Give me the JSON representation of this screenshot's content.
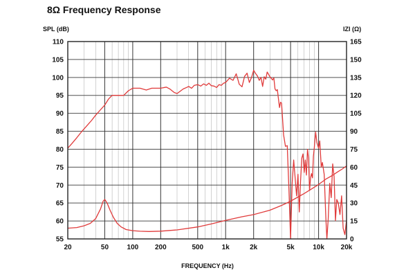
{
  "chart_data": {
    "type": "line",
    "title": "8Ω Frequency Response",
    "xlabel": "FREQUENCY (Hz)",
    "ylabel": "SPL (dB)",
    "y2label": "IZI (Ω)",
    "xscale": "log",
    "xlim": [
      20,
      20000
    ],
    "ylim": [
      55,
      110
    ],
    "y2lim": [
      0,
      165
    ],
    "grid": true,
    "x_tick_labels": [
      "20",
      "50",
      "100",
      "200",
      "500",
      "1k",
      "2k",
      "5k",
      "10k",
      "20k"
    ],
    "y_ticks": [
      55,
      60,
      65,
      70,
      75,
      80,
      85,
      90,
      95,
      100,
      105,
      110
    ],
    "y2_ticks": [
      0,
      15,
      30,
      45,
      60,
      75,
      90,
      105,
      120,
      135,
      150,
      165
    ],
    "colors": {
      "series": "#e03a3a",
      "grid": "#333333"
    },
    "series": [
      {
        "name": "SPL",
        "axis": "left",
        "points": [
          [
            20,
            80.3
          ],
          [
            22,
            81.5
          ],
          [
            25,
            83.2
          ],
          [
            28,
            84.8
          ],
          [
            32,
            86.5
          ],
          [
            36,
            88
          ],
          [
            40,
            89.5
          ],
          [
            45,
            91
          ],
          [
            50,
            92.3
          ],
          [
            55,
            94
          ],
          [
            60,
            95
          ],
          [
            70,
            95
          ],
          [
            80,
            95
          ],
          [
            90,
            96.3
          ],
          [
            100,
            97
          ],
          [
            120,
            97
          ],
          [
            140,
            96.5
          ],
          [
            160,
            97
          ],
          [
            180,
            97
          ],
          [
            200,
            97
          ],
          [
            230,
            97.3
          ],
          [
            250,
            96.8
          ],
          [
            280,
            95.8
          ],
          [
            300,
            95.5
          ],
          [
            330,
            96.3
          ],
          [
            350,
            96.8
          ],
          [
            380,
            97.2
          ],
          [
            400,
            97.5
          ],
          [
            430,
            97
          ],
          [
            460,
            97.8
          ],
          [
            500,
            98
          ],
          [
            540,
            97.6
          ],
          [
            580,
            98.2
          ],
          [
            620,
            97.8
          ],
          [
            660,
            98.4
          ],
          [
            700,
            97.7
          ],
          [
            750,
            97.6
          ],
          [
            800,
            97.2
          ],
          [
            850,
            98
          ],
          [
            900,
            97.8
          ],
          [
            950,
            98.4
          ],
          [
            1000,
            98.6
          ],
          [
            1100,
            99.8
          ],
          [
            1200,
            99.2
          ],
          [
            1300,
            101
          ],
          [
            1350,
            99.6
          ],
          [
            1400,
            98.1
          ],
          [
            1500,
            97.4
          ],
          [
            1600,
            100.3
          ],
          [
            1700,
            101.2
          ],
          [
            1800,
            98.6
          ],
          [
            1900,
            100
          ],
          [
            2000,
            102
          ],
          [
            2100,
            101.1
          ],
          [
            2200,
            100.4
          ],
          [
            2300,
            99.2
          ],
          [
            2400,
            100
          ],
          [
            2500,
            97.5
          ],
          [
            2600,
            100.2
          ],
          [
            2700,
            99.5
          ],
          [
            2800,
            101.5
          ],
          [
            3000,
            100.2
          ],
          [
            3200,
            99.3
          ],
          [
            3300,
            99.9
          ],
          [
            3400,
            96.8
          ],
          [
            3500,
            96.3
          ],
          [
            3600,
            96.6
          ],
          [
            3700,
            94
          ],
          [
            3800,
            91.6
          ],
          [
            3900,
            93.1
          ],
          [
            4000,
            92.8
          ],
          [
            4200,
            84
          ],
          [
            4400,
            80.8
          ],
          [
            4600,
            81
          ],
          [
            4800,
            69
          ],
          [
            5000,
            55
          ],
          [
            5200,
            70.5
          ],
          [
            5400,
            77
          ],
          [
            5600,
            72
          ],
          [
            5800,
            67
          ],
          [
            6000,
            73
          ],
          [
            6200,
            62.5
          ],
          [
            6400,
            71
          ],
          [
            6600,
            77.5
          ],
          [
            6800,
            78.7
          ],
          [
            7000,
            73.5
          ],
          [
            7200,
            77
          ],
          [
            7400,
            72.8
          ],
          [
            7600,
            80
          ],
          [
            7800,
            77.5
          ],
          [
            8000,
            68.5
          ],
          [
            8200,
            72
          ],
          [
            8400,
            73.2
          ],
          [
            8600,
            72
          ],
          [
            8800,
            78
          ],
          [
            9000,
            80.4
          ],
          [
            9300,
            84.8
          ],
          [
            9600,
            81.8
          ],
          [
            10000,
            80.3
          ],
          [
            10300,
            82.3
          ],
          [
            10700,
            75
          ],
          [
            11000,
            76.3
          ],
          [
            11500,
            73
          ],
          [
            12000,
            60.5
          ],
          [
            12300,
            55
          ],
          [
            12700,
            60.5
          ],
          [
            13200,
            70.5
          ],
          [
            13700,
            66.5
          ],
          [
            14200,
            75.9
          ],
          [
            14700,
            72.4
          ],
          [
            15200,
            60.1
          ],
          [
            15700,
            66
          ],
          [
            16300,
            65
          ],
          [
            17000,
            61.8
          ],
          [
            17700,
            67
          ],
          [
            18400,
            58
          ],
          [
            19200,
            56.2
          ],
          [
            20000,
            60.2
          ]
        ]
      },
      {
        "name": "IZI",
        "axis": "right",
        "points": [
          [
            20,
            9
          ],
          [
            25,
            9.5
          ],
          [
            30,
            11
          ],
          [
            35,
            13
          ],
          [
            40,
            17
          ],
          [
            45,
            25
          ],
          [
            48,
            31.5
          ],
          [
            50,
            33
          ],
          [
            53,
            30
          ],
          [
            57,
            24
          ],
          [
            62,
            18
          ],
          [
            68,
            13
          ],
          [
            75,
            10
          ],
          [
            85,
            7.8
          ],
          [
            100,
            6.9
          ],
          [
            120,
            6.4
          ],
          [
            150,
            6.2
          ],
          [
            200,
            6.5
          ],
          [
            300,
            7.5
          ],
          [
            500,
            10
          ],
          [
            700,
            12.5
          ],
          [
            1000,
            15.5
          ],
          [
            1500,
            18.5
          ],
          [
            2000,
            20.3
          ],
          [
            3000,
            24
          ],
          [
            4000,
            28
          ],
          [
            5000,
            31.5
          ],
          [
            6000,
            35
          ],
          [
            7000,
            38
          ],
          [
            8000,
            40.7
          ],
          [
            10000,
            45.5
          ],
          [
            12000,
            50
          ],
          [
            14000,
            53
          ],
          [
            16000,
            56
          ],
          [
            18000,
            58.5
          ],
          [
            20000,
            61
          ]
        ]
      }
    ]
  }
}
